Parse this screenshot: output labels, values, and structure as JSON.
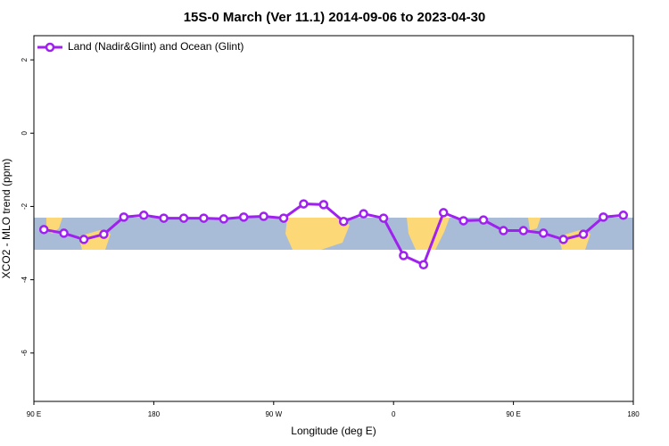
{
  "chart_data": {
    "type": "line",
    "title": "15S-0 March (Ver 11.1)   2014-09-06 to 2023-04-30",
    "x_label": "Longitude (deg E)",
    "y_label": "XCO2 - MLO trend (ppm)",
    "x": [
      97.5,
      112.5,
      127.5,
      142.5,
      157.5,
      172.5,
      187.5,
      202.5,
      217.5,
      232.5,
      247.5,
      262.5,
      277.5,
      292.5,
      307.5,
      322.5,
      337.5,
      352.5,
      367.5,
      382.5,
      397.5,
      412.5,
      427.5,
      442.5,
      457.5,
      472.5,
      487.5,
      502.5,
      517.5,
      532.5
    ],
    "series": [
      {
        "name": "Land (Nadir&Glint) and Ocean (Glint)",
        "color": "#a020f0",
        "values": [
          -2.63,
          -2.73,
          -2.9,
          -2.76,
          -2.29,
          -2.24,
          -2.32,
          -2.32,
          -2.32,
          -2.34,
          -2.29,
          -2.27,
          -2.32,
          -1.93,
          -1.95,
          -2.41,
          -2.2,
          -2.32,
          -3.34,
          -3.59,
          -2.17,
          -2.39,
          -2.37,
          -2.66,
          -2.66,
          -2.73,
          -2.9,
          -2.76,
          -2.29,
          -2.24
        ]
      }
    ],
    "xlim": [
      90,
      540
    ],
    "xticks": [
      {
        "value": 90,
        "label": "90 E"
      },
      180,
      {
        "value": 270,
        "label": "90 W"
      },
      {
        "value": 360,
        "label": "0"
      },
      {
        "value": 450,
        "label": "90 E"
      },
      {
        "value": 540,
        "label": "180"
      }
    ],
    "ylim": [
      -7.32,
      2.66
    ],
    "yticks": [
      2,
      0,
      -2,
      -4,
      -6
    ],
    "grid": false,
    "legend": "top-left"
  }
}
